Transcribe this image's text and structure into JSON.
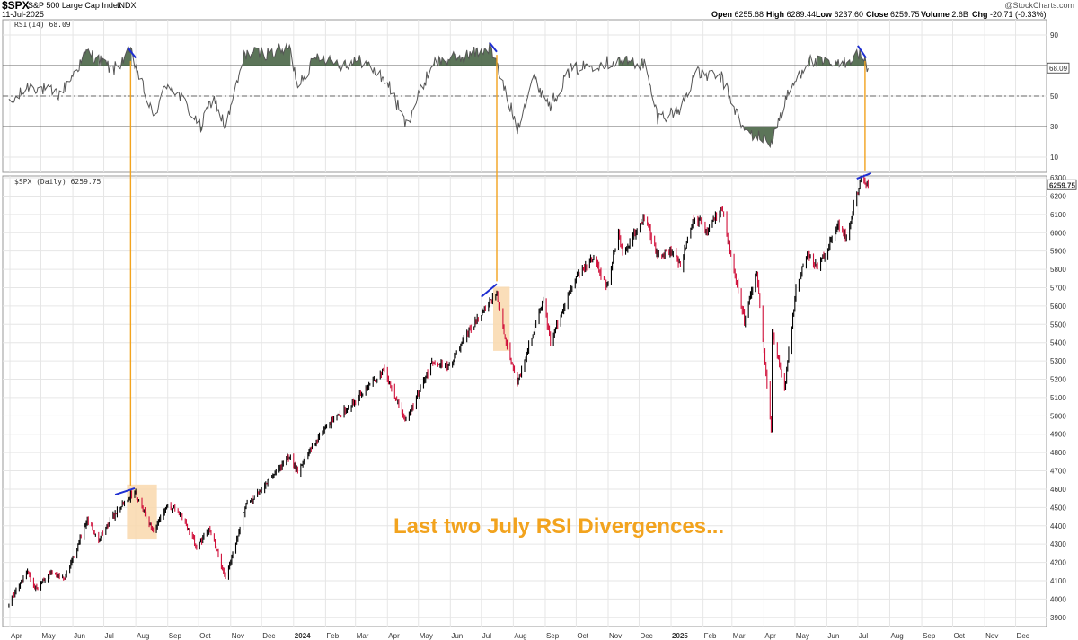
{
  "header": {
    "symbol": "$SPX",
    "name": "S&P 500 Large Cap Index",
    "exchange": "INDX",
    "date": "11-Jul-2025",
    "watermark": "@StockCharts.com",
    "open_label": "Open",
    "open": "6255.68",
    "high_label": "High",
    "high": "6289.44",
    "low_label": "Low",
    "low": "6237.60",
    "close_label": "Close",
    "close": "6259.75",
    "volume_label": "Volume",
    "volume": "2.6B",
    "chg_label": "Chg",
    "chg": "-20.71 (-0.33%)"
  },
  "callout_text": "Last two July RSI Divergences...",
  "colors": {
    "up": "#000000",
    "down": "#d0103a",
    "rsi_line": "#555555",
    "rsi_fill": "#3f5d3c",
    "divergence_line": "#1f2fd1",
    "connector": "#f2a31e",
    "highlight": "#f9d8ad",
    "grid": "#e6e6e6"
  },
  "chart_data": [
    {
      "type": "line",
      "title": "RSI(14) 68.09",
      "series": [
        {
          "name": "RSI(14)",
          "last": 68.09
        }
      ],
      "yticks": [
        10,
        30,
        50,
        70,
        90
      ],
      "ylim": [
        0,
        100
      ],
      "reference_lines": [
        30,
        50,
        70
      ],
      "last_value_label": "68.09",
      "keypoints": [
        [
          "2023-03-31",
          44
        ],
        [
          "2023-04-20",
          57
        ],
        [
          "2023-05-20",
          51
        ],
        [
          "2023-06-15",
          79
        ],
        [
          "2023-07-10",
          67
        ],
        [
          "2023-07-27",
          79
        ],
        [
          "2023-08-18",
          36
        ],
        [
          "2023-09-01",
          59
        ],
        [
          "2023-09-15",
          48
        ],
        [
          "2023-10-03",
          29
        ],
        [
          "2023-10-15",
          50
        ],
        [
          "2023-10-27",
          29
        ],
        [
          "2023-11-15",
          78
        ],
        [
          "2023-12-10",
          78
        ],
        [
          "2023-12-28",
          81
        ],
        [
          "2024-01-05",
          58
        ],
        [
          "2024-01-25",
          77
        ],
        [
          "2024-02-15",
          71
        ],
        [
          "2024-03-08",
          73
        ],
        [
          "2024-04-01",
          59
        ],
        [
          "2024-04-19",
          31
        ],
        [
          "2024-05-15",
          72
        ],
        [
          "2024-06-15",
          76
        ],
        [
          "2024-07-10",
          82
        ],
        [
          "2024-08-05",
          29
        ],
        [
          "2024-08-20",
          62
        ],
        [
          "2024-09-06",
          44
        ],
        [
          "2024-09-25",
          67
        ],
        [
          "2024-10-20",
          71
        ],
        [
          "2024-11-11",
          73
        ],
        [
          "2024-12-06",
          71
        ],
        [
          "2024-12-19",
          36
        ],
        [
          "2025-01-10",
          41
        ],
        [
          "2025-01-24",
          65
        ],
        [
          "2025-02-19",
          62
        ],
        [
          "2025-03-13",
          27
        ],
        [
          "2025-04-08",
          20
        ],
        [
          "2025-04-25",
          52
        ],
        [
          "2025-05-13",
          73
        ],
        [
          "2025-06-12",
          70
        ],
        [
          "2025-07-03",
          78
        ],
        [
          "2025-07-11",
          68.09
        ]
      ]
    },
    {
      "type": "line",
      "title": "$SPX (Daily) 6259.75",
      "series": [
        {
          "name": "$SPX (Daily)",
          "last": 6259.75
        }
      ],
      "last_value_label": "6259.75",
      "yticks": [
        3900,
        4000,
        4100,
        4200,
        4300,
        4400,
        4500,
        4600,
        4700,
        4800,
        4900,
        5000,
        5100,
        5200,
        5300,
        5400,
        5500,
        5600,
        5700,
        5800,
        5900,
        6000,
        6100,
        6200,
        6300
      ],
      "ylim": [
        3850,
        6310
      ],
      "x_labels": [
        "Apr",
        "May",
        "Jun",
        "Jul",
        "Aug",
        "Sep",
        "Oct",
        "Nov",
        "Dec",
        "2024",
        "Feb",
        "Mar",
        "Apr",
        "May",
        "Jun",
        "Jul",
        "Aug",
        "Sep",
        "Oct",
        "Nov",
        "Dec",
        "2025",
        "Feb",
        "Mar",
        "Apr",
        "May",
        "Jun",
        "Jul",
        "Aug",
        "Sep",
        "Oct",
        "Nov",
        "Dec"
      ],
      "x_label_dates": [
        "2023-04-01",
        "2023-05-01",
        "2023-06-01",
        "2023-07-01",
        "2023-08-01",
        "2023-09-01",
        "2023-10-01",
        "2023-11-01",
        "2023-12-01",
        "2024-01-01",
        "2024-02-01",
        "2024-03-01",
        "2024-04-01",
        "2024-05-01",
        "2024-06-01",
        "2024-07-01",
        "2024-08-01",
        "2024-09-01",
        "2024-10-01",
        "2024-11-01",
        "2024-12-01",
        "2025-01-01",
        "2025-02-01",
        "2025-03-01",
        "2025-04-01",
        "2025-05-01",
        "2025-06-01",
        "2025-07-01",
        "2025-08-01",
        "2025-09-01",
        "2025-10-01",
        "2025-11-01",
        "2025-12-01"
      ],
      "xlim": [
        "2023-03-25",
        "2025-12-31"
      ],
      "keypoints": [
        [
          "2023-03-31",
          3970
        ],
        [
          "2023-04-18",
          4150
        ],
        [
          "2023-04-25",
          4060
        ],
        [
          "2023-05-10",
          4140
        ],
        [
          "2023-05-24",
          4110
        ],
        [
          "2023-06-15",
          4425
        ],
        [
          "2023-06-26",
          4330
        ],
        [
          "2023-07-12",
          4470
        ],
        [
          "2023-07-31",
          4590
        ],
        [
          "2023-08-18",
          4370
        ],
        [
          "2023-09-01",
          4515
        ],
        [
          "2023-09-15",
          4450
        ],
        [
          "2023-09-29",
          4290
        ],
        [
          "2023-10-12",
          4380
        ],
        [
          "2023-10-27",
          4115
        ],
        [
          "2023-11-15",
          4500
        ],
        [
          "2023-12-01",
          4600
        ],
        [
          "2023-12-28",
          4780
        ],
        [
          "2024-01-05",
          4700
        ],
        [
          "2024-01-30",
          4930
        ],
        [
          "2024-02-29",
          5080
        ],
        [
          "2024-03-28",
          5250
        ],
        [
          "2024-04-19",
          4970
        ],
        [
          "2024-05-15",
          5300
        ],
        [
          "2024-05-31",
          5270
        ],
        [
          "2024-06-20",
          5470
        ],
        [
          "2024-07-16",
          5670
        ],
        [
          "2024-07-25",
          5400
        ],
        [
          "2024-08-05",
          5180
        ],
        [
          "2024-08-30",
          5640
        ],
        [
          "2024-09-06",
          5400
        ],
        [
          "2024-09-30",
          5760
        ],
        [
          "2024-10-18",
          5860
        ],
        [
          "2024-10-31",
          5705
        ],
        [
          "2024-11-11",
          6000
        ],
        [
          "2024-11-15",
          5870
        ],
        [
          "2024-12-06",
          6090
        ],
        [
          "2024-12-19",
          5870
        ],
        [
          "2024-12-30",
          5910
        ],
        [
          "2025-01-10",
          5830
        ],
        [
          "2025-01-24",
          6100
        ],
        [
          "2025-02-03",
          6000
        ],
        [
          "2025-02-19",
          6140
        ],
        [
          "2025-03-13",
          5520
        ],
        [
          "2025-03-25",
          5780
        ],
        [
          "2025-04-08",
          4930
        ],
        [
          "2025-04-09",
          5460
        ],
        [
          "2025-04-21",
          5150
        ],
        [
          "2025-05-02",
          5690
        ],
        [
          "2025-05-13",
          5890
        ],
        [
          "2025-05-23",
          5800
        ],
        [
          "2025-06-12",
          6050
        ],
        [
          "2025-06-20",
          5970
        ],
        [
          "2025-07-03",
          6280
        ],
        [
          "2025-07-11",
          6259.75
        ]
      ]
    }
  ],
  "annotations": {
    "divergence_dates": [
      "2023-07-27",
      "2024-07-16",
      "2025-07-08"
    ],
    "highlight_ranges": [
      {
        "start": "2023-07-27",
        "end": "2023-08-18"
      },
      {
        "start": "2024-07-16",
        "end": "2024-07-25"
      }
    ],
    "rsi_divergence_segments": [
      {
        "start": [
          "2023-07-24",
          82
        ],
        "end": [
          "2023-08-01",
          75
        ]
      },
      {
        "start": [
          "2024-07-09",
          85
        ],
        "end": [
          "2024-07-16",
          79
        ]
      },
      {
        "start": [
          "2025-07-01",
          83
        ],
        "end": [
          "2025-07-09",
          75
        ]
      }
    ],
    "price_divergence_segments": [
      {
        "start": [
          "2023-07-12",
          4570
        ],
        "end": [
          "2023-07-31",
          4605
        ]
      },
      {
        "start": [
          "2024-07-01",
          5650
        ],
        "end": [
          "2024-07-16",
          5720
        ]
      },
      {
        "start": [
          "2025-06-30",
          6295
        ],
        "end": [
          "2025-07-14",
          6325
        ]
      }
    ]
  }
}
